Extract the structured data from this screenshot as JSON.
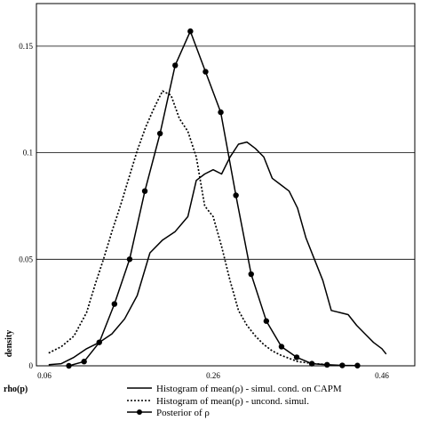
{
  "chart_data": {
    "type": "line",
    "xlabel": "rho(p)",
    "ylabel": "density",
    "xlim": [
      0.06,
      0.46
    ],
    "ylim": [
      0,
      0.17
    ],
    "xticks": [
      0.06,
      0.26,
      0.46
    ],
    "xtick_labels": [
      "0.06",
      "0.26",
      "0.46"
    ],
    "yticks": [
      0,
      0.05,
      0.1,
      0.15
    ],
    "ytick_labels": [
      "0",
      "0.05",
      "0.1",
      "0.15"
    ],
    "grid": "horizontal",
    "legend_position": "bottom",
    "series": [
      {
        "name": "Histogram of mean(ρ) - simul. cond. on CAPM",
        "style": "solid",
        "markers": false,
        "color": "#000000",
        "x": [
          0.065,
          0.08,
          0.095,
          0.11,
          0.125,
          0.14,
          0.155,
          0.17,
          0.185,
          0.2,
          0.215,
          0.23,
          0.24,
          0.25,
          0.26,
          0.27,
          0.28,
          0.29,
          0.3,
          0.31,
          0.32,
          0.33,
          0.34,
          0.35,
          0.36,
          0.37,
          0.38,
          0.39,
          0.4,
          0.41,
          0.42,
          0.43,
          0.44,
          0.45,
          0.46,
          0.465
        ],
        "y": [
          0.0005,
          0.001,
          0.004,
          0.008,
          0.011,
          0.015,
          0.022,
          0.033,
          0.053,
          0.059,
          0.063,
          0.07,
          0.087,
          0.09,
          0.092,
          0.09,
          0.098,
          0.104,
          0.105,
          0.102,
          0.098,
          0.088,
          0.085,
          0.082,
          0.074,
          0.06,
          0.05,
          0.04,
          0.026,
          0.025,
          0.024,
          0.019,
          0.015,
          0.011,
          0.008,
          0.0055
        ]
      },
      {
        "name": "Histogram of mean(ρ) - uncond. simul.",
        "style": "dotted",
        "markers": false,
        "color": "#000000",
        "x": [
          0.065,
          0.08,
          0.095,
          0.11,
          0.12,
          0.13,
          0.14,
          0.15,
          0.16,
          0.17,
          0.18,
          0.19,
          0.2,
          0.21,
          0.22,
          0.23,
          0.24,
          0.25,
          0.26,
          0.27,
          0.28,
          0.29,
          0.3,
          0.31,
          0.32,
          0.33,
          0.34,
          0.36,
          0.38,
          0.4
        ],
        "y": [
          0.006,
          0.009,
          0.014,
          0.025,
          0.038,
          0.05,
          0.063,
          0.075,
          0.088,
          0.101,
          0.112,
          0.121,
          0.129,
          0.127,
          0.116,
          0.11,
          0.098,
          0.075,
          0.07,
          0.056,
          0.04,
          0.026,
          0.019,
          0.014,
          0.01,
          0.007,
          0.005,
          0.002,
          0.001,
          0.0005
        ]
      },
      {
        "name": "Posterior of ρ",
        "style": "solid",
        "markers": true,
        "color": "#000000",
        "x": [
          0.089,
          0.107,
          0.125,
          0.143,
          0.161,
          0.179,
          0.197,
          0.215,
          0.233,
          0.251,
          0.269,
          0.287,
          0.305,
          0.323,
          0.341,
          0.359,
          0.377,
          0.395,
          0.413,
          0.431
        ],
        "y": [
          0.0,
          0.002,
          0.011,
          0.029,
          0.05,
          0.082,
          0.109,
          0.141,
          0.157,
          0.138,
          0.119,
          0.08,
          0.043,
          0.021,
          0.009,
          0.004,
          0.001,
          0.0005,
          0.0002,
          0.0001
        ]
      }
    ]
  }
}
